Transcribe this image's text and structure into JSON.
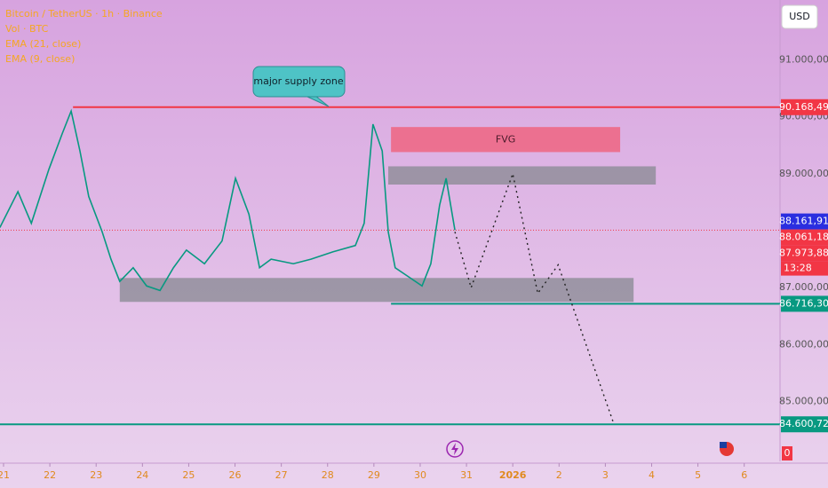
{
  "chart_data": {
    "type": "line",
    "header": [
      "Bitcoin / TetherUS · 1h · Binance",
      "Vol · BTC",
      "EMA (21, close)",
      "EMA (9, close)"
    ],
    "currency": "USD",
    "annotation": "major supply zone",
    "series": [
      {
        "name": "BTCUSDT",
        "color": "#089981",
        "x": [
          -0.08,
          0.31,
          0.6,
          0.98,
          1.27,
          1.46,
          1.65,
          1.84,
          2.13,
          2.32,
          2.51,
          2.8,
          3.09,
          3.38,
          3.67,
          3.95,
          4.34,
          4.72,
          5.01,
          5.3,
          5.53,
          5.78,
          6.26,
          6.64,
          7.12,
          7.6,
          7.79,
          7.98,
          8.18,
          8.31,
          8.46,
          8.75,
          9.04,
          9.23,
          9.42,
          9.56,
          9.75
        ],
        "values": [
          88055,
          88685,
          88130,
          89080,
          89710,
          90100,
          89400,
          88600,
          87980,
          87500,
          87110,
          87350,
          87030,
          86950,
          87350,
          87660,
          87420,
          87820,
          88920,
          88290,
          87350,
          87500,
          87420,
          87500,
          87630,
          87740,
          88130,
          89870,
          89400,
          87980,
          87350,
          87190,
          87030,
          87420,
          88450,
          88920,
          88010
        ]
      }
    ],
    "projection": {
      "color": "#222222",
      "x": [
        9.75,
        10.1,
        11.0,
        11.54,
        11.98,
        13.17
      ],
      "values": [
        87980,
        87000,
        89000,
        86900,
        87400,
        84640
      ]
    },
    "zones": [
      {
        "label": "FVG",
        "x": [
          8.37,
          13.32
        ],
        "y": [
          89380,
          89820
        ],
        "color": "#f0607a"
      },
      {
        "x": [
          8.31,
          14.09
        ],
        "y": [
          88810,
          89130
        ],
        "color": "#8c8c96"
      },
      {
        "x": [
          2.51,
          13.61
        ],
        "y": [
          86750,
          87170
        ],
        "color": "#8c8c96"
      }
    ],
    "levels": [
      {
        "value": 90168.49,
        "label": "90.168,49",
        "color": "#f23645",
        "x_start": 1.5,
        "line": true
      },
      {
        "value": 88161.91,
        "label": "88.161,91",
        "color": "#2a2ee0",
        "line": false
      },
      {
        "value": 88061.18,
        "label": "88.061,18",
        "color": "#f23645",
        "line": false
      },
      {
        "value": 87973.88,
        "label": "87.973,88",
        "color": "#f23645",
        "line": false
      },
      {
        "value": 86716.3,
        "label": "86.716,30",
        "color": "#089981",
        "x_start": 8.37,
        "line": true
      },
      {
        "value": 84600.72,
        "label": "84.600,72",
        "color": "#089981",
        "x_start": -0.08,
        "line": true
      }
    ],
    "countdown": "13:28",
    "volume_label": "0",
    "ylim": [
      83950,
      92050
    ],
    "yticks": [
      {
        "value": 85000,
        "label": "85.000,00"
      },
      {
        "value": 86000,
        "label": "86.000,00"
      },
      {
        "value": 87000,
        "label": "87.000,00"
      },
      {
        "value": 89000,
        "label": "89.000,00"
      },
      {
        "value": 90000,
        "label": "90.000,00"
      },
      {
        "value": 91000,
        "label": "91.000,00"
      }
    ],
    "xlim": [
      -0.077,
      16.62
    ],
    "xticks": [
      {
        "value": 0,
        "label": "21"
      },
      {
        "value": 1,
        "label": "22"
      },
      {
        "value": 2,
        "label": "23"
      },
      {
        "value": 3,
        "label": "24"
      },
      {
        "value": 4,
        "label": "25"
      },
      {
        "value": 5,
        "label": "26"
      },
      {
        "value": 6,
        "label": "27"
      },
      {
        "value": 7,
        "label": "28"
      },
      {
        "value": 8,
        "label": "29"
      },
      {
        "value": 9,
        "label": "30"
      },
      {
        "value": 10,
        "label": "31"
      },
      {
        "value": 11,
        "label": "2026"
      },
      {
        "value": 12,
        "label": "2"
      },
      {
        "value": 13,
        "label": "3"
      },
      {
        "value": 14,
        "label": "4"
      },
      {
        "value": 15,
        "label": "5"
      },
      {
        "value": 16,
        "label": "6"
      }
    ]
  }
}
